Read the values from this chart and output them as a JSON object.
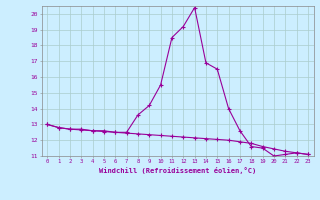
{
  "xlabel": "Windchill (Refroidissement éolien,°C)",
  "background_color": "#cceeff",
  "grid_color": "#aacccc",
  "line_color": "#990099",
  "xlim": [
    -0.5,
    23.5
  ],
  "ylim": [
    11,
    20.5
  ],
  "xticks": [
    0,
    1,
    2,
    3,
    4,
    5,
    6,
    7,
    8,
    9,
    10,
    11,
    12,
    13,
    14,
    15,
    16,
    17,
    18,
    19,
    20,
    21,
    22,
    23
  ],
  "yticks": [
    11,
    12,
    13,
    14,
    15,
    16,
    17,
    18,
    19,
    20
  ],
  "x_hours": [
    0,
    1,
    2,
    3,
    4,
    5,
    6,
    7,
    8,
    9,
    10,
    11,
    12,
    13,
    14,
    15,
    16,
    17,
    18,
    19,
    20,
    21,
    22,
    23
  ],
  "line1_y": [
    13.0,
    12.8,
    12.7,
    12.7,
    12.6,
    12.6,
    12.5,
    12.5,
    13.6,
    14.2,
    15.5,
    18.5,
    19.2,
    20.4,
    16.9,
    16.5,
    14.0,
    12.6,
    11.6,
    11.5,
    11.0,
    11.1,
    11.2,
    11.1
  ],
  "line2_y": [
    13.0,
    12.8,
    12.7,
    12.65,
    12.6,
    12.55,
    12.5,
    12.45,
    12.4,
    12.35,
    12.3,
    12.25,
    12.2,
    12.15,
    12.1,
    12.05,
    12.0,
    11.9,
    11.8,
    11.6,
    11.45,
    11.3,
    11.2,
    11.1
  ],
  "markersize": 3,
  "linewidth": 0.8
}
